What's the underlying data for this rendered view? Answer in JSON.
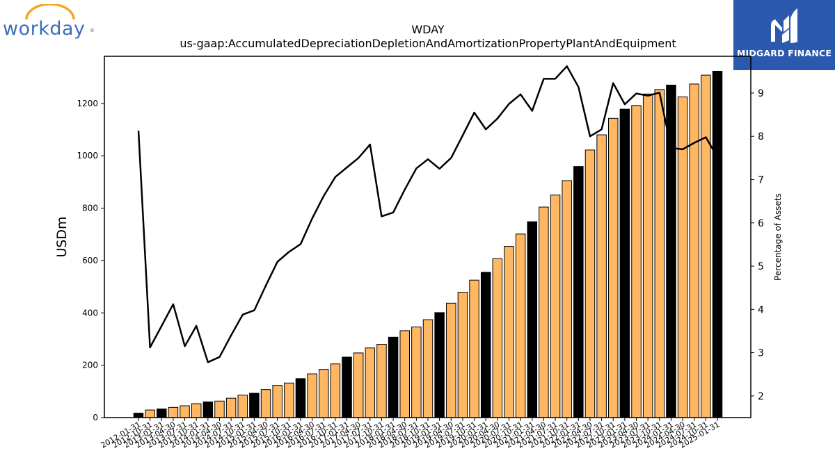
{
  "branding": {
    "left_logo_text": "workday",
    "left_logo_mark": "®",
    "left_logo_color": "#3a6fb8",
    "left_logo_arc_color": "#f5a623",
    "right_logo_text": "MIDGARD FINANCE",
    "right_logo_bg": "#2b59ad"
  },
  "chart_data": {
    "type": "bar",
    "title": "WDAY",
    "subtitle": "us-gaap:AccumulatedDepreciationDepletionAndAmortizationPropertyPlantAndEquipment",
    "ylabel": "USDm",
    "y2label": "Percentage of Assets",
    "ylim": [
      0,
      1380
    ],
    "y2lim": [
      1.5,
      9.85
    ],
    "yticks": [
      0,
      200,
      400,
      600,
      800,
      1000,
      1200
    ],
    "y2ticks": [
      2,
      3,
      4,
      5,
      6,
      7,
      8,
      9
    ],
    "categories": [
      "2012-01-31",
      "2012-10-31",
      "2013-01-31",
      "2013-04-30",
      "2013-07-31",
      "2013-10-31",
      "2014-01-31",
      "2014-04-30",
      "2014-07-31",
      "2014-10-31",
      "2015-01-31",
      "2015-04-30",
      "2015-07-31",
      "2015-10-31",
      "2016-01-31",
      "2016-04-30",
      "2016-07-31",
      "2016-10-31",
      "2017-01-31",
      "2017-04-30",
      "2017-07-31",
      "2017-10-31",
      "2018-01-31",
      "2018-04-30",
      "2018-07-31",
      "2018-10-31",
      "2019-01-31",
      "2019-04-30",
      "2019-07-31",
      "2019-10-31",
      "2020-01-31",
      "2020-04-30",
      "2020-07-31",
      "2020-10-31",
      "2021-01-31",
      "2021-04-30",
      "2021-07-31",
      "2021-10-31",
      "2022-01-31",
      "2022-04-30",
      "2022-07-31",
      "2022-10-31",
      "2023-01-31",
      "2023-04-30",
      "2023-07-31",
      "2023-10-31",
      "2024-01-31",
      "2024-04-30",
      "2024-07-31",
      "2024-10-31",
      "2025-01-31"
    ],
    "values": [
      17,
      29,
      33,
      39,
      45,
      53,
      60,
      63,
      74,
      86,
      93,
      107,
      123,
      132,
      149,
      167,
      184,
      205,
      231,
      247,
      266,
      280,
      307,
      332,
      346,
      374,
      401,
      437,
      479,
      525,
      555,
      607,
      654,
      701,
      748,
      804,
      850,
      905,
      959,
      1022,
      1080,
      1143,
      1178,
      1192,
      1236,
      1253,
      1270,
      1225,
      1274,
      1308,
      1323
    ],
    "highlight": [
      true,
      false,
      true,
      false,
      false,
      false,
      true,
      false,
      false,
      false,
      true,
      false,
      false,
      false,
      true,
      false,
      false,
      false,
      true,
      false,
      false,
      false,
      true,
      false,
      false,
      false,
      true,
      false,
      false,
      false,
      true,
      false,
      false,
      false,
      true,
      false,
      false,
      false,
      true,
      false,
      false,
      false,
      true,
      false,
      false,
      false,
      true,
      false,
      false,
      false,
      true
    ],
    "series": [
      {
        "name": "Percentage of Assets",
        "axis": "right",
        "values": [
          8.13,
          3.12,
          3.62,
          4.12,
          3.15,
          3.62,
          2.78,
          2.9,
          3.4,
          3.88,
          3.98,
          4.55,
          5.1,
          5.33,
          5.51,
          6.1,
          6.62,
          7.06,
          7.28,
          7.5,
          7.81,
          6.15,
          6.24,
          6.77,
          7.26,
          7.47,
          7.25,
          7.5,
          8.02,
          8.55,
          8.16,
          8.41,
          8.75,
          8.97,
          8.59,
          9.33,
          9.33,
          9.62,
          9.14,
          8.0,
          8.16,
          9.23,
          8.74,
          8.99,
          8.94,
          9.01,
          7.73,
          7.7,
          7.85,
          7.98,
          7.52
        ]
      }
    ],
    "colors": {
      "bar": "#ffb762",
      "bar_highlight": "#000000",
      "line": "#000000"
    },
    "grid": false,
    "legend": "none"
  }
}
